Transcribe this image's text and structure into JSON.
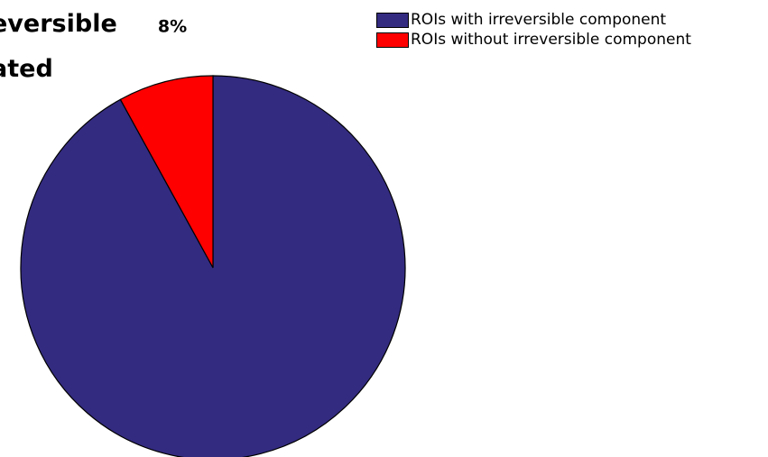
{
  "chart_data": {
    "type": "pie",
    "title_lines": [
      "eversible",
      "ated"
    ],
    "slices": [
      {
        "name": "ROIs with irreversible component",
        "value": 92,
        "color": "#332b80"
      },
      {
        "name": "ROIs without irreversible component",
        "value": 8,
        "color": "#ff0000",
        "label": "8%"
      }
    ],
    "start_angle_deg": 0,
    "direction": "clockwise",
    "legend_position": "top-right"
  }
}
